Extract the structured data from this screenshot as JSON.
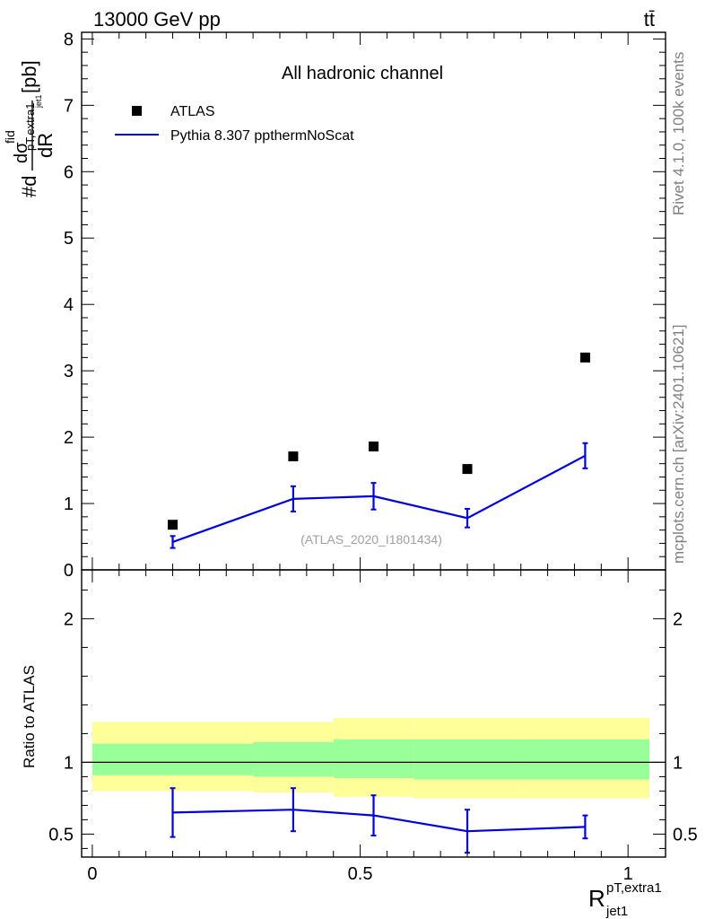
{
  "header": {
    "energy_label": "13000 GeV pp",
    "process_label": "tt̄"
  },
  "side_labels": {
    "rivet": "Rivet 4.1.0,  100k events",
    "mcplots": "mcplots.cern.ch [arXiv:2401.10621]"
  },
  "chart_data": [
    {
      "type": "scatter",
      "panel": "main",
      "title": "All hadronic channel",
      "analysis_id": "(ATLAS_2020_I1801434)",
      "ylabel": {
        "main": "#d",
        "num": "dσ",
        "num_sup": "fid",
        "num_sub": "pT,extra1",
        "num_sub2": "jet1",
        "den": "dR",
        "unit": "[pb]"
      },
      "xlim": [
        -0.02,
        1.07
      ],
      "ylim": [
        0,
        8.1
      ],
      "yticks": [
        0,
        1,
        2,
        3,
        4,
        5,
        6,
        7,
        8
      ],
      "ytick_labels": [
        "0",
        "1",
        "2",
        "3",
        "4",
        "5",
        "6",
        "7",
        "8"
      ],
      "legend": [
        {
          "name": "ATLAS",
          "marker": "square",
          "color": "#000000"
        },
        {
          "name": "Pythia 8.307 ppthermNoScat",
          "marker": "line",
          "color": "#0000dd"
        }
      ],
      "series": [
        {
          "name": "ATLAS",
          "x": [
            0.15,
            0.375,
            0.525,
            0.7,
            0.92
          ],
          "y": [
            0.68,
            1.71,
            1.86,
            1.52,
            3.2
          ]
        },
        {
          "name": "Pythia 8.307 ppthermNoScat",
          "x": [
            0.15,
            0.375,
            0.525,
            0.7,
            0.92
          ],
          "y": [
            0.42,
            1.07,
            1.11,
            0.78,
            1.72
          ],
          "err": [
            0.09,
            0.19,
            0.2,
            0.14,
            0.19
          ]
        }
      ]
    },
    {
      "type": "scatter",
      "panel": "ratio",
      "ylabel": "Ratio to ATLAS",
      "xlabel": {
        "base": "R",
        "sup": "pT,extra1",
        "sub": "jet1"
      },
      "xlim": [
        -0.02,
        1.07
      ],
      "ylim": [
        0.34,
        2.34
      ],
      "yticks": [
        0.5,
        1,
        2
      ],
      "ytick_labels": [
        "0.5",
        "1",
        "2"
      ],
      "xticks": [
        0,
        0.5,
        1
      ],
      "xtick_labels": [
        "0",
        "0.5",
        "1"
      ],
      "bands": [
        {
          "x0": 0.0,
          "x1": 0.3,
          "lo2": 0.8,
          "hi2": 1.28,
          "lo1": 0.91,
          "hi1": 1.13
        },
        {
          "x0": 0.3,
          "x1": 0.45,
          "lo2": 0.79,
          "hi2": 1.28,
          "lo1": 0.9,
          "hi1": 1.14
        },
        {
          "x0": 0.45,
          "x1": 0.6,
          "lo2": 0.76,
          "hi2": 1.31,
          "lo1": 0.89,
          "hi1": 1.16
        },
        {
          "x0": 0.6,
          "x1": 0.8,
          "lo2": 0.75,
          "hi2": 1.31,
          "lo1": 0.88,
          "hi1": 1.16
        },
        {
          "x0": 0.8,
          "x1": 1.04,
          "lo2": 0.75,
          "hi2": 1.31,
          "lo1": 0.88,
          "hi1": 1.16
        }
      ],
      "band_colors": {
        "outer": "#ffff99",
        "inner": "#99ff99"
      },
      "series": [
        {
          "name": "Pythia 8.307 ppthermNoScat",
          "x": [
            0.15,
            0.375,
            0.525,
            0.7,
            0.92
          ],
          "y": [
            0.65,
            0.67,
            0.63,
            0.52,
            0.55
          ],
          "err": [
            0.17,
            0.15,
            0.14,
            0.15,
            0.08
          ]
        }
      ]
    }
  ]
}
